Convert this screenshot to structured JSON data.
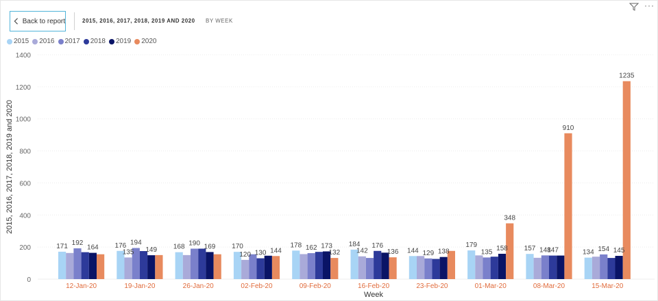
{
  "header": {
    "back_label": "Back to report",
    "title": "2015, 2016, 2017, 2018, 2019 AND 2020",
    "drill_label": "BY WEEK"
  },
  "icons": {
    "back": "chevron-left-icon",
    "filter": "filter-icon",
    "more": "more-options-icon"
  },
  "chart_data": {
    "type": "bar",
    "xlabel": "Week",
    "ylabel": "2015, 2016, 2017, 2018, 2019 and 2020",
    "ylim": [
      0,
      1400
    ],
    "yticks": [
      0,
      200,
      400,
      600,
      800,
      1000,
      1200,
      1400
    ],
    "grid": true,
    "legend_position": "top-left",
    "categories": [
      "12-Jan-20",
      "19-Jan-20",
      "26-Jan-20",
      "02-Feb-20",
      "09-Feb-20",
      "16-Feb-20",
      "23-Feb-20",
      "01-Mar-20",
      "08-Mar-20",
      "15-Mar-20"
    ],
    "series": [
      {
        "name": "2015",
        "color": "#a8d4f5",
        "values": [
          171,
          176,
          168,
          170,
          178,
          184,
          144,
          179,
          157,
          134
        ]
      },
      {
        "name": "2016",
        "color": "#a9aad9",
        "values": [
          163,
          135,
          150,
          120,
          156,
          142,
          144,
          148,
          133,
          140
        ]
      },
      {
        "name": "2017",
        "color": "#7a80cb",
        "values": [
          192,
          194,
          190,
          155,
          162,
          132,
          129,
          135,
          148,
          154
        ]
      },
      {
        "name": "2018",
        "color": "#2d3a9a",
        "values": [
          168,
          175,
          190,
          130,
          170,
          176,
          126,
          140,
          147,
          132
        ]
      },
      {
        "name": "2019",
        "color": "#0a1466",
        "values": [
          164,
          149,
          169,
          146,
          173,
          165,
          138,
          158,
          147,
          145
        ]
      },
      {
        "name": "2020",
        "color": "#e88a5e",
        "values": [
          155,
          150,
          155,
          144,
          132,
          136,
          176,
          348,
          910,
          1235
        ]
      }
    ],
    "data_labels": [
      {
        "category": "12-Jan-20",
        "values": [
          171,
          192,
          164
        ]
      },
      {
        "category": "19-Jan-20",
        "values": [
          176,
          135,
          194,
          149
        ]
      },
      {
        "category": "26-Jan-20",
        "values": [
          168,
          190,
          169
        ]
      },
      {
        "category": "02-Feb-20",
        "values": [
          170,
          120,
          130,
          144
        ]
      },
      {
        "category": "09-Feb-20",
        "values": [
          178,
          162,
          173,
          132
        ]
      },
      {
        "category": "16-Feb-20",
        "values": [
          184,
          142,
          176,
          136
        ]
      },
      {
        "category": "23-Feb-20",
        "values": [
          144,
          129,
          138
        ]
      },
      {
        "category": "01-Mar-20",
        "values": [
          179,
          135,
          158,
          348
        ]
      },
      {
        "category": "08-Mar-20",
        "values": [
          157,
          148,
          147,
          910
        ]
      },
      {
        "category": "15-Mar-20",
        "values": [
          134,
          154,
          145,
          1235
        ]
      }
    ]
  }
}
